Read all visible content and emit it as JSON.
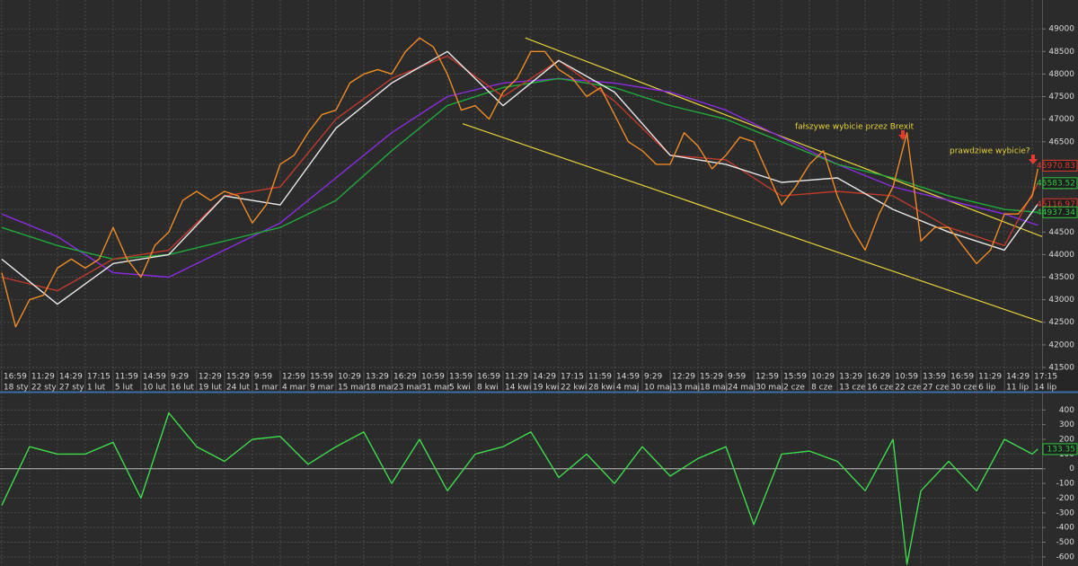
{
  "chart_data": [
    {
      "type": "line",
      "xlim": [
        -0.06,
        37.35
      ],
      "ylim": [
        41440,
        49640
      ],
      "yticks": [
        41500,
        42000,
        42500,
        43000,
        43500,
        44000,
        44500,
        45000,
        45500,
        46000,
        46500,
        47000,
        47500,
        48000,
        48500,
        49000
      ],
      "grid": true,
      "category_times": [
        "16:59",
        "11:29",
        "14:29",
        "17:15",
        "11:59",
        "14:59",
        "9:29",
        "12:29",
        "15:29",
        "9:59",
        "12:59",
        "15:59",
        "10:29",
        "13:29",
        "16:29",
        "10:59",
        "13:59",
        "16:59",
        "11:29",
        "14:29",
        "17:15",
        "11:59",
        "14:59",
        "9:29",
        "12:29",
        "15:29",
        "9:59",
        "12:59",
        "15:59",
        "10:29",
        "13:29",
        "16:29",
        "10:59",
        "13:59",
        "16:59",
        "11:29",
        "14:29",
        "17:15"
      ],
      "categories": [
        "18 sty",
        "22 sty",
        "27 sty",
        "1 lut",
        "5 lut",
        "10 lut",
        "16 lut",
        "19 lut",
        "24 lut",
        "1 mar",
        "4 mar",
        "9 mar",
        "15 mar",
        "18 mar",
        "23 mar",
        "31 mar",
        "5 kwi",
        "8 kwi",
        "14 kwi",
        "19 kwi",
        "22 kwi",
        "28 kwi",
        "4 maj",
        "10 maj",
        "13 maj",
        "18 maj",
        "24 maj",
        "30 maj",
        "2 cze",
        "8 cze",
        "13 cze",
        "16 cze",
        "22 cze",
        "27 cze",
        "30 cze",
        "6 lip",
        "11 lip",
        "14 lip"
      ],
      "series": [
        {
          "color": "#8a2be2",
          "x": [
            0,
            2,
            4,
            6,
            8,
            10,
            12,
            14,
            16,
            18,
            20,
            22,
            24,
            26,
            28,
            30,
            32,
            34,
            36,
            37.2
          ],
          "values": [
            44900,
            44400,
            43600,
            43500,
            44100,
            44700,
            45700,
            46700,
            47500,
            47800,
            47900,
            47800,
            47600,
            47200,
            46600,
            46000,
            45500,
            45200,
            44900,
            44650
          ]
        },
        {
          "color": "#1faa3a",
          "x": [
            0,
            2,
            4,
            6,
            8,
            10,
            12,
            14,
            16,
            18,
            20,
            22,
            24,
            26,
            28,
            30,
            32,
            34,
            36,
            37.2
          ],
          "values": [
            44600,
            44200,
            43900,
            44000,
            44300,
            44600,
            45200,
            46300,
            47300,
            47700,
            47900,
            47700,
            47300,
            47000,
            46500,
            46000,
            45700,
            45300,
            45000,
            44937
          ]
        },
        {
          "color": "#c0392b",
          "x": [
            0,
            2,
            4,
            6,
            8,
            10,
            12,
            14,
            16,
            18,
            20,
            22,
            24,
            26,
            28,
            30,
            32,
            34,
            36,
            37.2
          ],
          "values": [
            43500,
            43200,
            43900,
            44100,
            45300,
            45500,
            47000,
            47900,
            48400,
            47500,
            48300,
            47400,
            46200,
            46100,
            45300,
            45400,
            45300,
            44600,
            44200,
            45580
          ]
        },
        {
          "color": "#e8e8e8",
          "x": [
            0,
            2,
            4,
            6,
            8,
            10,
            12,
            14,
            16,
            18,
            20,
            22,
            24,
            26,
            28,
            30,
            32,
            34,
            36,
            37.2
          ],
          "values": [
            43900,
            42900,
            43800,
            44000,
            45300,
            45100,
            46800,
            47800,
            48500,
            47300,
            48300,
            47600,
            46200,
            46000,
            45600,
            45700,
            45000,
            44500,
            44100,
            45117
          ]
        },
        {
          "color": "#f08a24",
          "x": [
            0,
            0.5,
            1,
            1.5,
            2,
            2.5,
            3,
            3.5,
            4,
            4.5,
            5,
            5.5,
            6,
            6.5,
            7,
            7.5,
            8,
            8.5,
            9,
            9.5,
            10,
            10.5,
            11,
            11.5,
            12,
            12.5,
            13,
            13.5,
            14,
            14.5,
            15,
            15.5,
            16,
            16.5,
            17,
            17.5,
            18,
            18.5,
            19,
            19.5,
            20,
            20.5,
            21,
            21.5,
            22,
            22.5,
            23,
            23.5,
            24,
            24.5,
            25,
            25.5,
            26,
            26.5,
            27,
            27.5,
            28,
            28.5,
            29,
            29.5,
            30,
            30.5,
            31,
            31.5,
            32,
            32.5,
            33,
            33.5,
            34,
            34.5,
            35,
            35.5,
            36,
            36.5,
            37,
            37.2
          ],
          "values": [
            43600,
            42400,
            43000,
            43100,
            43700,
            43900,
            43700,
            43900,
            44600,
            43900,
            43500,
            44200,
            44500,
            45200,
            45400,
            45200,
            45400,
            45300,
            44700,
            45100,
            46000,
            46200,
            46700,
            47100,
            47200,
            47800,
            48000,
            48100,
            48000,
            48500,
            48800,
            48600,
            48000,
            47200,
            47300,
            47000,
            47600,
            47900,
            48500,
            48500,
            48100,
            47900,
            47500,
            47700,
            47100,
            46500,
            46300,
            46000,
            46000,
            46700,
            46400,
            45900,
            46200,
            46600,
            46500,
            45800,
            45100,
            45500,
            46000,
            46300,
            45300,
            44600,
            44100,
            44900,
            45500,
            46700,
            44300,
            44600,
            44600,
            44200,
            43800,
            44100,
            44900,
            44900,
            45300,
            45900
          ]
        }
      ],
      "channel_color": "#e6d23a",
      "channel": [
        {
          "x": [
            18.8,
            37.35
          ],
          "values": [
            48800,
            44400
          ]
        },
        {
          "x": [
            16.55,
            37.35
          ],
          "values": [
            46900,
            42500
          ]
        }
      ],
      "last_values": [
        {
          "value": 45970.83,
          "color": "#e03c31"
        },
        {
          "value": 45583.52,
          "color": "#2ecc40"
        },
        {
          "value": 45116.97,
          "color": "#e03c31"
        },
        {
          "value": 44937.34,
          "color": "#2ecc40"
        }
      ],
      "annotations": [
        "fałszywe wybicie przez Brexit",
        "prawdziwe wybicie?"
      ]
    },
    {
      "type": "line",
      "xlim": [
        -0.06,
        37.35
      ],
      "ylim": [
        -662,
        518
      ],
      "yticks": [
        400,
        300,
        200,
        100,
        0,
        -100,
        -200,
        -300,
        -400,
        -500,
        -600
      ],
      "grid": true,
      "hline": 0,
      "series": [
        {
          "color": "#3ddc4a",
          "x": [
            0,
            1,
            2,
            3,
            4,
            5,
            6,
            7,
            8,
            9,
            10,
            11,
            12,
            13,
            14,
            15,
            16,
            17,
            18,
            19,
            20,
            21,
            22,
            23,
            24,
            25,
            26,
            27,
            28,
            29,
            30,
            31,
            32,
            32.5,
            33,
            34,
            35,
            36,
            37,
            37.2
          ],
          "values": [
            -250,
            150,
            100,
            100,
            180,
            -200,
            380,
            150,
            50,
            200,
            220,
            30,
            150,
            250,
            -100,
            200,
            -150,
            100,
            150,
            250,
            -60,
            100,
            -100,
            150,
            -50,
            70,
            150,
            -380,
            100,
            120,
            50,
            -150,
            200,
            -650,
            -150,
            50,
            -150,
            200,
            100,
            133.35
          ]
        }
      ],
      "last_values": [
        {
          "value": 133.35,
          "color": "#2ecc40"
        }
      ]
    }
  ]
}
